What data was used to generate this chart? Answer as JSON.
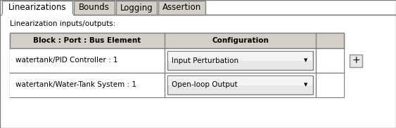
{
  "tabs": [
    {
      "label": "Linearizations",
      "active": true
    },
    {
      "label": "Bounds",
      "active": false
    },
    {
      "label": "Logging",
      "active": false
    },
    {
      "label": "Assertion",
      "active": false
    }
  ],
  "label": "Linearization inputs/outputs:",
  "table_header_col1": "Block : Port : Bus Element",
  "table_header_col2": "Configuration",
  "rows": [
    {
      "col1": "watertank/PID Controller : 1",
      "col2": "Input Perturbation"
    },
    {
      "col1": "watertank/Water-Tank System : 1",
      "col2": "Open-loop Output"
    }
  ],
  "bg_color": "#ffffff",
  "panel_outer_bg": "#f0f0f0",
  "tab_active_bg": "#ffffff",
  "tab_inactive_bg": "#d4d0c8",
  "tab_border_color": "#808080",
  "panel_border_color": "#808080",
  "header_bg": "#d4d0c8",
  "row_bg": "#ffffff",
  "dropdown_top_color": "#f0f0f0",
  "dropdown_bot_color": "#d8d8d8",
  "dropdown_border": "#808080",
  "table_border": "#808080",
  "text_color": "#000000",
  "plus_button_bg": "#e8e8e8",
  "plus_border_color": "#909090",
  "font_size": 7.5,
  "header_font_size": 7.5,
  "tab_font_size": 8.5,
  "label_font_size": 7.5
}
